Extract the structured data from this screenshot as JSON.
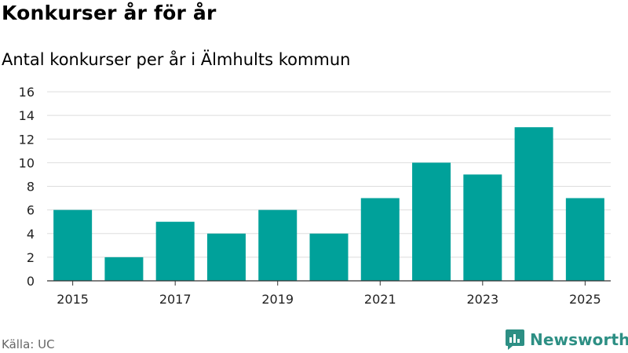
{
  "header": {
    "title": "Konkurser år för år",
    "subtitle": "Antal konkurser per år i Älmhults kommun"
  },
  "footer": {
    "source": "Källa: UC",
    "brand": "Newsworthy"
  },
  "colors": {
    "bar": "#00a19a",
    "grid": "#dddddd",
    "axis": "#333333",
    "brand": "#2d8f84"
  },
  "chart_data": {
    "type": "bar",
    "title": "Konkurser år för år",
    "subtitle": "Antal konkurser per år i Älmhults kommun",
    "xlabel": "",
    "ylabel": "",
    "categories": [
      "2015",
      "2016",
      "2017",
      "2018",
      "2019",
      "2020",
      "2021",
      "2022",
      "2023",
      "2024",
      "2025"
    ],
    "values": [
      6,
      2,
      5,
      4,
      6,
      4,
      7,
      10,
      9,
      13,
      7
    ],
    "x_tick_labels": [
      "2015",
      "2017",
      "2019",
      "2021",
      "2023",
      "2025"
    ],
    "y_ticks": [
      0,
      2,
      4,
      6,
      8,
      10,
      12,
      14,
      16
    ],
    "ylim": [
      0,
      16
    ],
    "grid": true,
    "legend": "none"
  }
}
